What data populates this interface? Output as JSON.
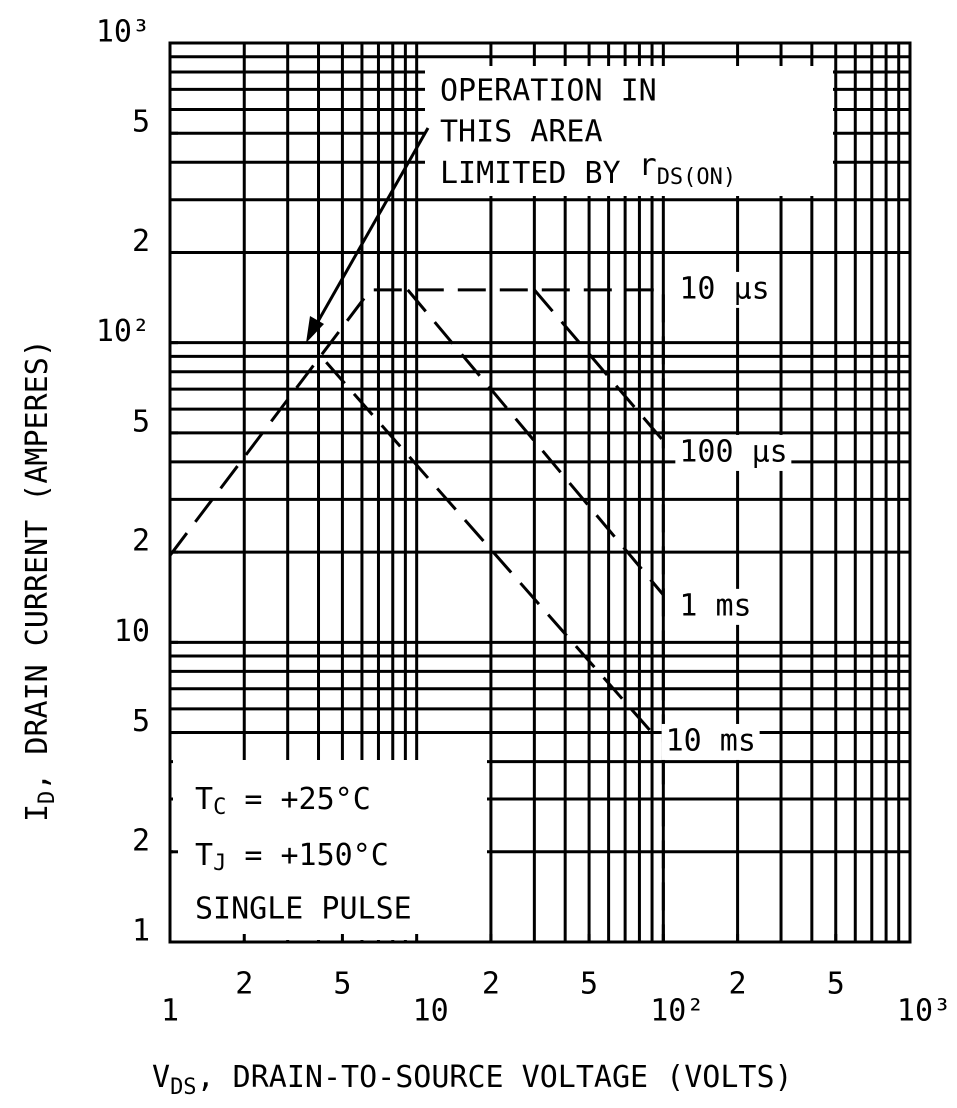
{
  "chart_data": {
    "type": "line",
    "x_label": {
      "main": "V",
      "sub": "DS",
      "rest": ", DRAIN-TO-SOURCE VOLTAGE (VOLTS)"
    },
    "y_label": {
      "main": "I",
      "sub": "D",
      "rest": ", DRAIN CURRENT (AMPERES)"
    },
    "xscale": "log",
    "yscale": "log",
    "xlim": [
      1,
      1000
    ],
    "ylim": [
      1,
      1000
    ],
    "xticks": [
      1,
      2,
      5,
      10,
      {
        "value": 20,
        "label": "2"
      },
      {
        "value": 50,
        "label": "5"
      },
      {
        "value": 100,
        "label": "10²"
      },
      {
        "value": 200,
        "label": "2"
      },
      {
        "value": 500,
        "label": "5"
      },
      {
        "value": 1000,
        "label": "10³"
      }
    ],
    "yticks": [
      1,
      2,
      5,
      10,
      {
        "value": 20,
        "label": "2"
      },
      {
        "value": 50,
        "label": "5"
      },
      {
        "value": 100,
        "label": "10²"
      },
      {
        "value": 200,
        "label": "2"
      },
      {
        "value": 500,
        "label": "5"
      },
      {
        "value": 1000,
        "label": "10³"
      }
    ],
    "grid": true,
    "xgrid": [
      1,
      2,
      3,
      4,
      5,
      6,
      7,
      8,
      9,
      10,
      20,
      30,
      40,
      50,
      60,
      70,
      80,
      90,
      100,
      200,
      300,
      400,
      500,
      600,
      700,
      800,
      900,
      1000
    ],
    "ygrid": [
      1,
      2,
      3,
      4,
      5,
      6,
      7,
      8,
      9,
      10,
      20,
      30,
      40,
      50,
      60,
      70,
      80,
      90,
      100,
      200,
      300,
      400,
      500,
      600,
      700,
      800,
      900,
      1000
    ],
    "series": [
      {
        "name": "10 µs",
        "color": "#000000",
        "x": [
          1,
          6.5,
          100,
          100
        ],
        "values": [
          19.5,
          150,
          150,
          1
        ]
      },
      {
        "name": "100 µs",
        "color": "#000000",
        "x": [
          30,
          100
        ],
        "values": [
          150,
          47
        ]
      },
      {
        "name": "1 ms",
        "color": "#000000",
        "x": [
          9.2,
          100
        ],
        "values": [
          150,
          14.4
        ]
      },
      {
        "name": "10 ms",
        "color": "#000000",
        "x": [
          4.3,
          88
        ],
        "values": [
          86,
          5.1
        ]
      }
    ],
    "annotations": {
      "rds_lines": [
        "OPERATION IN",
        "THIS AREA",
        "LIMITED BY"
      ],
      "rds_symbol": "r",
      "rds_sub": "DS(ON)",
      "conditions": [
        {
          "main": "T",
          "sub": "C",
          "rest": " = +25°C"
        },
        {
          "main": "T",
          "sub": "J",
          "rest": " = +150°C"
        },
        {
          "main": "SINGLE PULSE"
        }
      ]
    }
  }
}
